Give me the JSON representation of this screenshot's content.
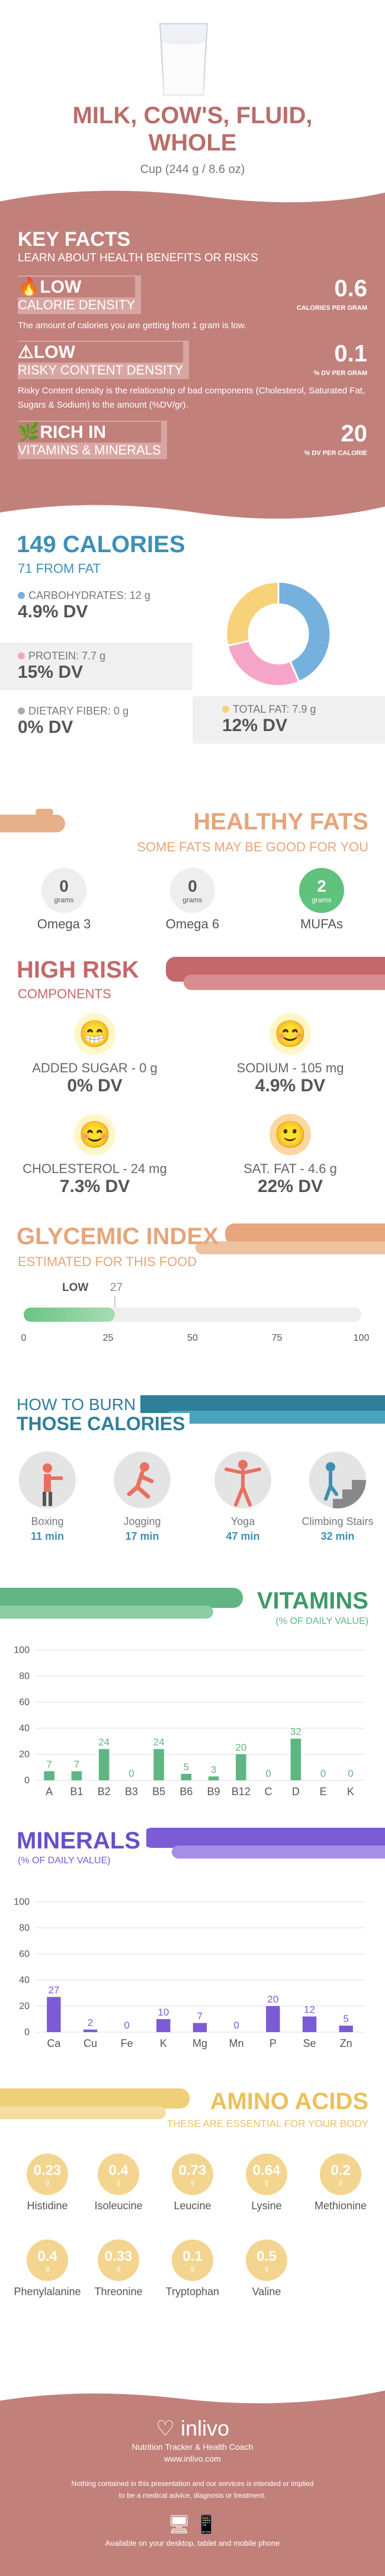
{
  "header": {
    "title_line1": "MILK, COW'S, FLUID,",
    "title_line2": "WHOLE",
    "serving": "Cup (244 g / 8.6 oz)"
  },
  "key_facts": {
    "title": "KEY FACTS",
    "subtitle": "LEARN ABOUT HEALTH BENEFITS OR RISKS",
    "items": [
      {
        "level": "LOW",
        "label": "CALORIE DENSITY",
        "value": "0.6",
        "unit": "CALORIES PER GRAM",
        "desc": "The amount of calories you are getting from 1 gram is low."
      },
      {
        "level": "LOW",
        "label": "RISKY CONTENT DENSITY",
        "value": "0.1",
        "unit": "% DV PER GRAM",
        "desc": "Risky Content density is the relationship of bad components (Cholesterol, Saturated Fat, Sugars & Sodium) to the amount (%DV/gr)."
      },
      {
        "level": "RICH  IN",
        "label": "VITAMINS & MINERALS",
        "value": "20",
        "unit": "% DV PER CALORIE",
        "desc": ""
      }
    ]
  },
  "calories": {
    "title": "149 CALORIES",
    "subtitle": "71 FROM FAT",
    "carbs": {
      "label": "CARBOHYDRATES: 12 g",
      "dv": "4.9% DV"
    },
    "protein": {
      "label": "PROTEIN: 7.7 g",
      "dv": "15% DV"
    },
    "fiber": {
      "label": "DIETARY FIBER: 0 g",
      "dv": "0% DV"
    },
    "fat": {
      "label": "TOTAL FAT: 7.9 g",
      "dv": "12% DV"
    },
    "donut": {
      "carbs": 12,
      "protein": 7.7,
      "fat": 7.9
    },
    "colors": {
      "carbs": "#76b1dd",
      "protein": "#f5a6c8",
      "fat": "#f7d27a",
      "fiber": "#aaaaaa"
    }
  },
  "healthy_fats": {
    "title": "HEALTHY FATS",
    "subtitle": "SOME FATS MAY BE GOOD FOR YOU",
    "items": [
      {
        "value": "0",
        "unit": "grams",
        "label": "Omega 3"
      },
      {
        "value": "0",
        "unit": "grams",
        "label": "Omega 6"
      },
      {
        "value": "2",
        "unit": "grams",
        "label": "MUFAs"
      }
    ]
  },
  "high_risk": {
    "title": "HIGH RISK",
    "subtitle": "COMPONENTS",
    "items": [
      {
        "label": "ADDED SUGAR - 0 g",
        "dv": "0% DV"
      },
      {
        "label": "SODIUM - 105 mg",
        "dv": "4.9% DV"
      },
      {
        "label": "CHOLESTEROL - 24 mg",
        "dv": "7.3% DV"
      },
      {
        "label": "SAT. FAT - 4.6 g",
        "dv": "22% DV"
      }
    ]
  },
  "glycemic": {
    "title": "GLYCEMIC INDEX",
    "subtitle": "ESTIMATED FOR THIS FOOD",
    "level": "LOW",
    "value": 27,
    "value_label": "27",
    "ticks": [
      "0",
      "25",
      "50",
      "75",
      "100"
    ]
  },
  "burn": {
    "title1": "HOW TO BURN",
    "title2": "THOSE CALORIES",
    "items": [
      {
        "label": "Boxing",
        "time": "11 min"
      },
      {
        "label": "Jogging",
        "time": "17 min"
      },
      {
        "label": "Yoga",
        "time": "47 min"
      },
      {
        "label": "Climbing Stairs",
        "time": "32 min"
      }
    ]
  },
  "vitamins": {
    "title": "VITAMINS",
    "subtitle": "(% OF DAILY VALUE)"
  },
  "minerals": {
    "title": "MINERALS",
    "subtitle": "(% OF DAILY VALUE)"
  },
  "chart_data": [
    {
      "type": "bar",
      "title": "VITAMINS",
      "ylabel": "",
      "categories": [
        "A",
        "B1",
        "B2",
        "B3",
        "B5",
        "B6",
        "B9",
        "B12",
        "C",
        "D",
        "E",
        "K"
      ],
      "values": [
        7,
        7,
        24,
        0,
        24,
        5,
        3,
        20,
        0,
        32,
        0,
        0
      ],
      "ylim": [
        0,
        100
      ],
      "yticks": [
        "0",
        "20",
        "40",
        "60",
        "80",
        "100"
      ],
      "color": "#5fb683"
    },
    {
      "type": "bar",
      "title": "MINERALS",
      "ylabel": "",
      "categories": [
        "Ca",
        "Cu",
        "Fe",
        "K",
        "Mg",
        "Mn",
        "P",
        "Se",
        "Zn"
      ],
      "values": [
        27,
        2,
        0,
        10,
        7,
        0,
        20,
        12,
        5
      ],
      "ylim": [
        0,
        100
      ],
      "yticks": [
        "0",
        "20",
        "40",
        "60",
        "80",
        "100"
      ],
      "color": "#7b5cd6"
    }
  ],
  "amino": {
    "title": "AMINO ACIDS",
    "subtitle": "THESE ARE ESSENTIAL FOR YOUR BODY",
    "items": [
      {
        "v": "0.23",
        "l": "Histidine"
      },
      {
        "v": "0.4",
        "l": "Isoleucine"
      },
      {
        "v": "0.73",
        "l": "Leucine"
      },
      {
        "v": "0.64",
        "l": "Lysine"
      },
      {
        "v": "0.2",
        "l": "Methionine"
      },
      {
        "v": "0.4",
        "l": "Phenylalanine"
      },
      {
        "v": "0.33",
        "l": "Threonine"
      },
      {
        "v": "0.1",
        "l": "Tryptophan"
      },
      {
        "v": "0.5",
        "l": "Valine"
      }
    ],
    "unit": "g"
  },
  "footer": {
    "brand": "inlivo",
    "tagline": "Nutrition Tracker & Health Coach",
    "url": "www.inlivo.com",
    "disclaimer1": "Nothing contained in this presentation and our services is intended or implied",
    "disclaimer2": "to be a medical advice, diagnosis or treatment.",
    "available": "Available on your desktop, tablet and mobile phone"
  }
}
